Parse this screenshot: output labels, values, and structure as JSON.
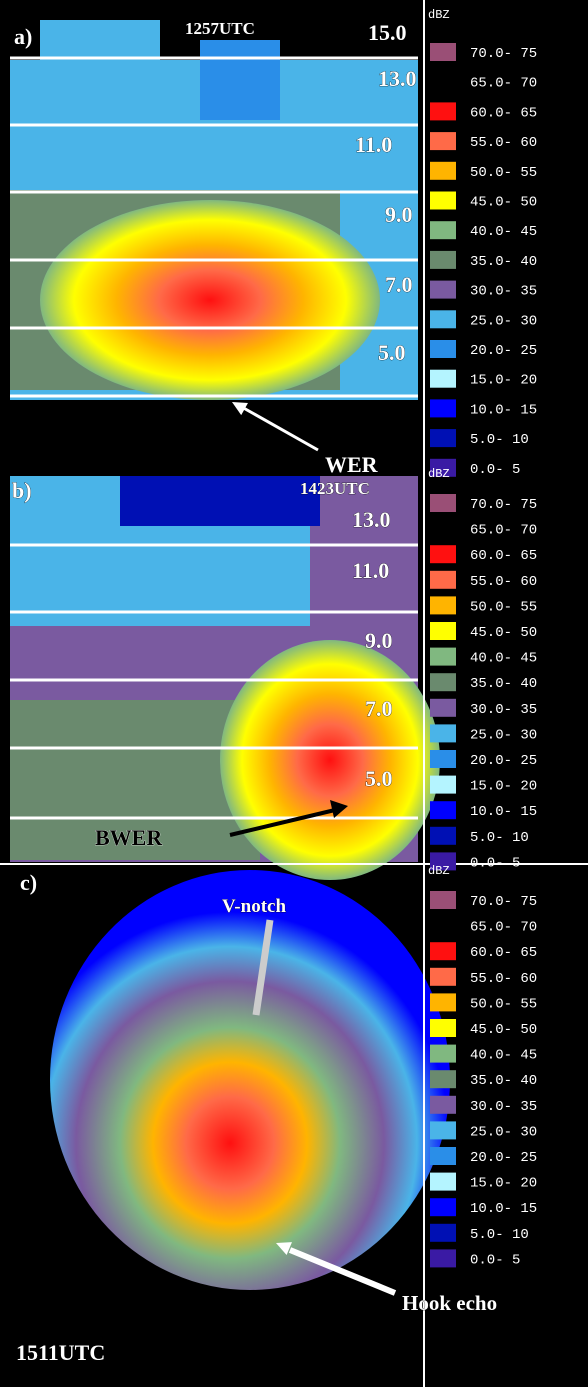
{
  "legend": {
    "title": "dBZ",
    "items": [
      {
        "label": "70.0- 75",
        "color": "#9a4f76"
      },
      {
        "label": "65.0- 70",
        "color": "#000000"
      },
      {
        "label": "60.0- 65",
        "color": "#ff1010"
      },
      {
        "label": "55.0- 60",
        "color": "#ff6a48"
      },
      {
        "label": "50.0- 55",
        "color": "#ffb400"
      },
      {
        "label": "45.0- 50",
        "color": "#ffff00"
      },
      {
        "label": "40.0- 45",
        "color": "#80b880"
      },
      {
        "label": "35.0- 40",
        "color": "#6a8a6e"
      },
      {
        "label": "30.0- 35",
        "color": "#7a5aa0"
      },
      {
        "label": "25.0- 30",
        "color": "#4ab4e8"
      },
      {
        "label": "20.0- 25",
        "color": "#2a8ee8"
      },
      {
        "label": "15.0- 20",
        "color": "#b4f4ff"
      },
      {
        "label": "10.0- 15",
        "color": "#0000ff"
      },
      {
        "label": "5.0- 10",
        "color": "#0010b4"
      },
      {
        "label": "0.0- 5",
        "color": "#3a1aa4"
      }
    ]
  },
  "panels": [
    {
      "label": "a)",
      "time": "1257UTC",
      "heights": [
        "15.0",
        "13.0",
        "11.0",
        "9.0",
        "7.0",
        "5.0"
      ],
      "annotation": "WER"
    },
    {
      "label": "b)",
      "time": "1423UTC",
      "heights": [
        "13.0",
        "11.0",
        "9.0",
        "7.0",
        "5.0"
      ],
      "annotation": "BWER"
    },
    {
      "label": "c)",
      "time": "1511UTC",
      "annotations": [
        "V-notch",
        "Hook echo"
      ]
    }
  ]
}
